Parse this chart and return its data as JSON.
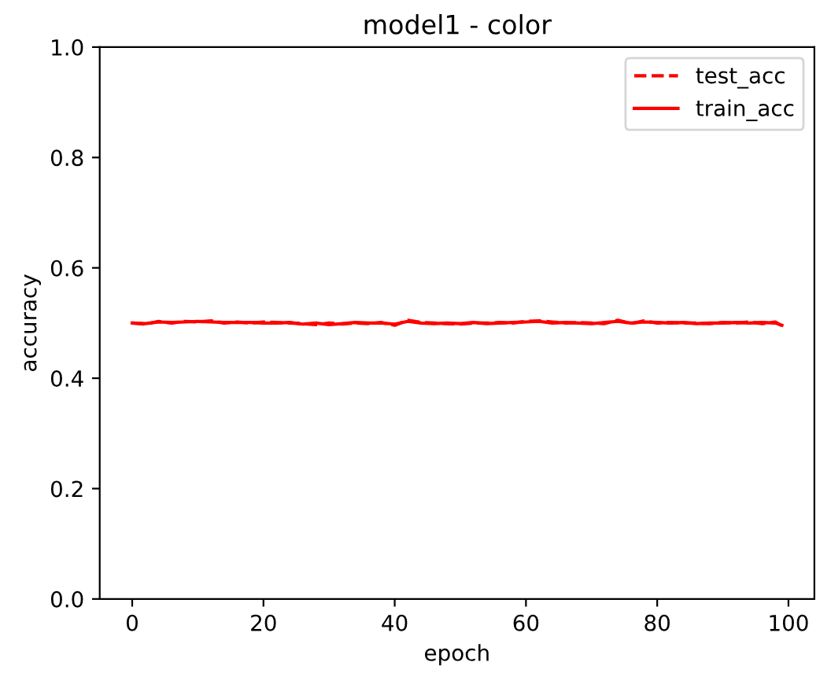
{
  "chart_data": {
    "type": "line",
    "title": "model1 - color",
    "xlabel": "epoch",
    "ylabel": "accuracy",
    "x": [
      0,
      2,
      4,
      6,
      8,
      10,
      12,
      14,
      16,
      18,
      20,
      22,
      24,
      26,
      28,
      30,
      32,
      34,
      36,
      38,
      40,
      42,
      44,
      46,
      48,
      50,
      52,
      54,
      56,
      58,
      60,
      62,
      64,
      66,
      68,
      70,
      72,
      74,
      76,
      78,
      80,
      82,
      84,
      86,
      88,
      90,
      92,
      94,
      96,
      98,
      99
    ],
    "series": [
      {
        "name": "test_acc",
        "color": "#ff0000",
        "line_style": "dashed",
        "values": [
          0.5,
          0.498,
          0.503,
          0.5,
          0.503,
          0.502,
          0.504,
          0.5,
          0.502,
          0.5,
          0.502,
          0.501,
          0.5,
          0.499,
          0.497,
          0.5,
          0.498,
          0.5,
          0.499,
          0.501,
          0.496,
          0.505,
          0.501,
          0.5,
          0.499,
          0.498,
          0.5,
          0.5,
          0.501,
          0.5,
          0.503,
          0.504,
          0.502,
          0.5,
          0.501,
          0.5,
          0.499,
          0.505,
          0.499,
          0.504,
          0.5,
          0.501,
          0.5,
          0.5,
          0.499,
          0.501,
          0.5,
          0.502,
          0.499,
          0.502,
          0.495
        ]
      },
      {
        "name": "train_acc",
        "color": "#ff0000",
        "line_style": "solid",
        "values": [
          0.5,
          0.499,
          0.502,
          0.501,
          0.502,
          0.503,
          0.502,
          0.501,
          0.501,
          0.501,
          0.5,
          0.5,
          0.501,
          0.498,
          0.5,
          0.497,
          0.499,
          0.501,
          0.5,
          0.5,
          0.498,
          0.503,
          0.5,
          0.499,
          0.5,
          0.499,
          0.501,
          0.499,
          0.5,
          0.501,
          0.502,
          0.503,
          0.5,
          0.501,
          0.5,
          0.499,
          0.501,
          0.503,
          0.5,
          0.502,
          0.501,
          0.5,
          0.501,
          0.499,
          0.5,
          0.5,
          0.501,
          0.5,
          0.501,
          0.5,
          0.496
        ]
      }
    ],
    "xlim": [
      -4.95,
      103.95
    ],
    "xticks": [
      0,
      20,
      40,
      60,
      80,
      100
    ],
    "ylim": [
      0,
      1
    ],
    "yticks": [
      {
        "value": 0,
        "label": "0.0"
      },
      0.2,
      0.4,
      0.6,
      0.8,
      {
        "value": 1,
        "label": "1.0"
      }
    ],
    "legend": "top right",
    "grid": false
  }
}
